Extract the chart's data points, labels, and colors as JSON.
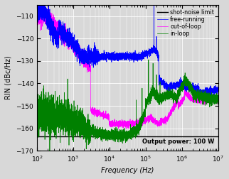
{
  "title": "",
  "xlabel": "Frequency (Hz)",
  "ylabel": "RIN (dBc/Hz)",
  "xlim_log": [
    100.0,
    10000000.0
  ],
  "ylim": [
    -170,
    -105
  ],
  "yticks": [
    -170,
    -160,
    -150,
    -140,
    -130,
    -120,
    -110
  ],
  "shot_noise_level": -163.5,
  "annotation": "Output power: 100 W",
  "legend_labels": [
    "free-running",
    "out-of-loop",
    "in-loop",
    "shot-noise limit"
  ],
  "legend_colors": [
    "#0000ff",
    "#ff00ff",
    "#008000",
    "#000000"
  ],
  "bg_color": "#d8d8d8",
  "grid_color": "#ffffff",
  "figsize": [
    3.22,
    2.52
  ],
  "dpi": 100
}
